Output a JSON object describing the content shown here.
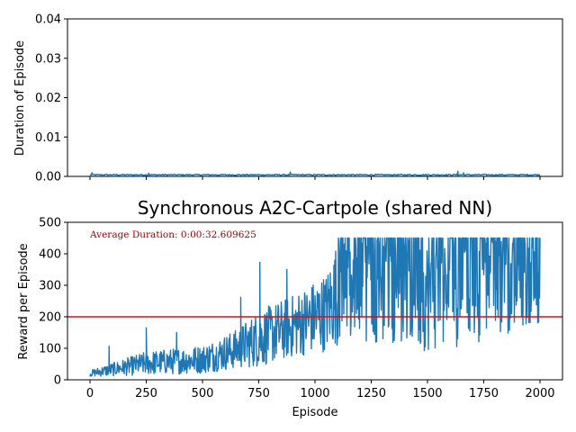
{
  "chart_data": [
    {
      "type": "line",
      "title": "",
      "xlabel": "",
      "ylabel": "Duration of Episode",
      "xlim": [
        -100,
        2100
      ],
      "ylim": [
        0,
        0.04
      ],
      "xticks": [
        0,
        250,
        500,
        750,
        1000,
        1250,
        1500,
        1750,
        2000
      ],
      "show_xtick_labels": false,
      "yticks": [
        "0.00",
        "0.01",
        "0.02",
        "0.03",
        "0.04"
      ],
      "ytick_values": [
        0,
        0.01,
        0.02,
        0.03,
        0.04
      ],
      "grid": false,
      "series": [
        {
          "color": "#1f77b4",
          "x": [
            0,
            2000
          ],
          "y_baseline": 0.0004,
          "y_noise": 0.0003,
          "spikes": [
            {
              "x": 8,
              "y": 0.0009
            },
            {
              "x": 260,
              "y": 0.0008
            },
            {
              "x": 890,
              "y": 0.0011
            },
            {
              "x": 1635,
              "y": 0.0013
            },
            {
              "x": 1660,
              "y": 0.0009
            }
          ]
        }
      ]
    },
    {
      "type": "line",
      "title": "Synchronous A2C-Cartpole (shared NN)",
      "xlabel": "Episode",
      "ylabel": "Reward per Episode",
      "xlim": [
        -100,
        2100
      ],
      "ylim": [
        0,
        500
      ],
      "xticks": [
        0,
        250,
        500,
        750,
        1000,
        1250,
        1500,
        1750,
        2000
      ],
      "yticks": [
        0,
        100,
        200,
        300,
        400,
        500
      ],
      "grid": false,
      "annotation": "Average Duration: 0:00:32.609625",
      "reference_line": {
        "y": 200,
        "color": "#ff0000"
      },
      "series": [
        {
          "color": "#1f77b4",
          "x_range": [
            0,
            2000
          ],
          "trend": [
            {
              "x": 0,
              "low": 10,
              "high": 30
            },
            {
              "x": 250,
              "low": 15,
              "high": 90
            },
            {
              "x": 500,
              "low": 20,
              "high": 110
            },
            {
              "x": 650,
              "low": 35,
              "high": 160
            },
            {
              "x": 750,
              "low": 40,
              "high": 220
            },
            {
              "x": 900,
              "low": 70,
              "high": 270
            },
            {
              "x": 1050,
              "low": 90,
              "high": 340
            },
            {
              "x": 1100,
              "low": 110,
              "high": 450
            },
            {
              "x": 1300,
              "low": 120,
              "high": 450
            },
            {
              "x": 1500,
              "low": 90,
              "high": 450
            },
            {
              "x": 1700,
              "low": 110,
              "high": 450
            },
            {
              "x": 2000,
              "low": 180,
              "high": 450
            }
          ],
          "spikes": [
            {
              "x": 85,
              "y": 107
            },
            {
              "x": 250,
              "y": 165
            },
            {
              "x": 385,
              "y": 150
            },
            {
              "x": 670,
              "y": 262
            },
            {
              "x": 755,
              "y": 373
            },
            {
              "x": 875,
              "y": 350
            }
          ]
        }
      ]
    }
  ]
}
